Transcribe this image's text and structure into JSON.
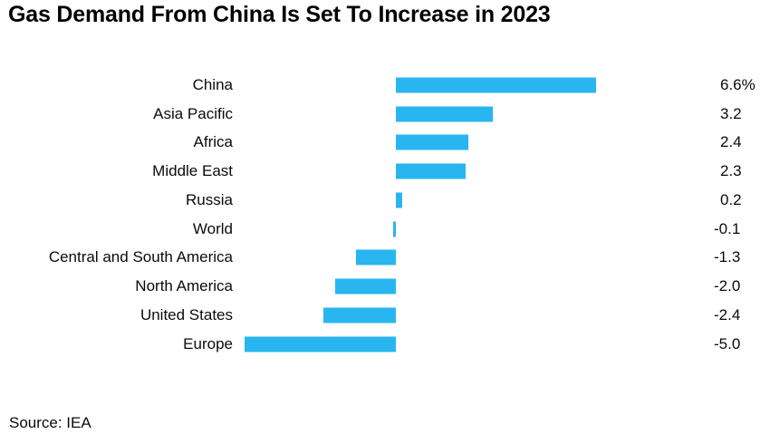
{
  "title": "Gas Demand From China Is Set To Increase in 2023",
  "source": "Source: IEA",
  "chart_data": {
    "type": "bar",
    "orientation": "horizontal",
    "title": "Gas Demand From China Is Set To Increase in 2023",
    "categories": [
      "China",
      "Asia Pacific",
      "Africa",
      "Middle East",
      "Russia",
      "World",
      "Central and South America",
      "North America",
      "United States",
      "Europe"
    ],
    "values": [
      6.6,
      3.2,
      2.4,
      2.3,
      0.2,
      -0.1,
      -1.3,
      -2.0,
      -2.4,
      -5.0
    ],
    "value_labels": [
      "6.6%",
      "3.2",
      "2.4",
      "2.3",
      "0.2",
      "-0.1",
      "-1.3",
      "-2.0",
      "-2.4",
      "-5.0"
    ],
    "units": "%",
    "xlabel": "",
    "ylabel": "",
    "xlim": [
      -5.0,
      6.6
    ],
    "grid": false,
    "legend": false,
    "bar_color": "#29B6F0",
    "value_label_position": "right"
  }
}
